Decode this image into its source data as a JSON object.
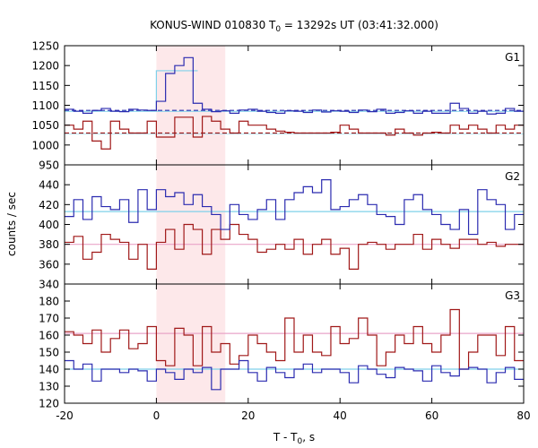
{
  "chart_data": {
    "type": "line",
    "title_main": "KONUS-WIND 010830 T",
    "title_sub": "0",
    "title_rest": " = 13292s UT (03:41:32.000)",
    "xlabel_main": "T - T",
    "xlabel_sub": "0",
    "xlabel_rest": ", s",
    "ylabel": "counts / sec",
    "xlim": [
      -20,
      80
    ],
    "x_ticks": [
      -20,
      0,
      20,
      40,
      60,
      80
    ],
    "shaded_interval": [
      0,
      15
    ],
    "colors": {
      "blue": "#2b2bb0",
      "red": "#a01818",
      "cyan": "#7fd0ea",
      "pink": "#e9a4c8",
      "shade": "#fde8ea"
    },
    "step_start": -20,
    "step_width": 2,
    "panels": [
      {
        "label": "G1",
        "ylim": [
          950,
          1250
        ],
        "y_ticks": [
          950,
          1000,
          1050,
          1100,
          1150,
          1200,
          1250
        ],
        "blue_level": 1087,
        "red_level": 1030,
        "blue_fit_style": "dashed",
        "red_fit_style": "dashed",
        "blue": [
          1090,
          1085,
          1080,
          1087,
          1092,
          1085,
          1084,
          1090,
          1088,
          1087,
          1110,
          1180,
          1200,
          1220,
          1105,
          1090,
          1084,
          1086,
          1080,
          1088,
          1090,
          1085,
          1082,
          1080,
          1086,
          1085,
          1082,
          1088,
          1083,
          1086,
          1085,
          1082,
          1088,
          1084,
          1090,
          1080,
          1082,
          1086,
          1080,
          1085,
          1080,
          1080,
          1105,
          1092,
          1080,
          1085,
          1078,
          1080,
          1092,
          1085
        ],
        "red": [
          1050,
          1040,
          1060,
          1010,
          990,
          1060,
          1040,
          1030,
          1030,
          1060,
          1020,
          1020,
          1070,
          1070,
          1020,
          1072,
          1060,
          1040,
          1030,
          1060,
          1050,
          1050,
          1040,
          1035,
          1032,
          1030,
          1030,
          1030,
          1030,
          1032,
          1050,
          1040,
          1030,
          1030,
          1030,
          1025,
          1040,
          1030,
          1025,
          1030,
          1032,
          1030,
          1050,
          1040,
          1050,
          1040,
          1030,
          1050,
          1040,
          1050
        ],
        "cyan_box": [
          0,
          9,
          1187
        ]
      },
      {
        "label": "G2",
        "ylim": [
          340,
          460
        ],
        "y_ticks": [
          340,
          360,
          380,
          400,
          420,
          440
        ],
        "blue_level": 413,
        "red_level": 380,
        "blue_fit_style": "solid",
        "red_fit_style": "solid",
        "blue": [
          408,
          425,
          405,
          428,
          418,
          415,
          425,
          402,
          435,
          415,
          435,
          428,
          432,
          420,
          430,
          418,
          410,
          395,
          420,
          410,
          405,
          415,
          425,
          405,
          425,
          432,
          438,
          432,
          445,
          415,
          418,
          425,
          430,
          420,
          410,
          408,
          400,
          425,
          430,
          415,
          410,
          400,
          395,
          415,
          390,
          435,
          425,
          420,
          395,
          410
        ],
        "red": [
          382,
          388,
          365,
          372,
          390,
          385,
          382,
          365,
          380,
          355,
          382,
          395,
          375,
          400,
          395,
          370,
          395,
          385,
          400,
          390,
          385,
          372,
          375,
          380,
          375,
          385,
          370,
          380,
          385,
          370,
          376,
          355,
          380,
          382,
          380,
          375,
          380,
          380,
          390,
          375,
          385,
          380,
          376,
          385,
          385,
          380,
          382,
          378,
          380,
          380
        ]
      },
      {
        "label": "G3",
        "ylim": [
          120,
          190
        ],
        "y_ticks": [
          120,
          130,
          140,
          150,
          160,
          170,
          180
        ],
        "blue_level": 140,
        "red_level": 161,
        "blue_fit_style": "solid",
        "red_fit_style": "solid",
        "blue": [
          145,
          140,
          143,
          133,
          140,
          140,
          138,
          140,
          139,
          133,
          140,
          138,
          134,
          140,
          138,
          141,
          128,
          140,
          140,
          145,
          138,
          133,
          141,
          138,
          135,
          140,
          143,
          138,
          140,
          140,
          138,
          132,
          142,
          140,
          137,
          135,
          141,
          140,
          139,
          133,
          142,
          138,
          136,
          140,
          141,
          140,
          132,
          138,
          141,
          134
        ],
        "red": [
          162,
          160,
          155,
          163,
          150,
          158,
          163,
          152,
          155,
          165,
          145,
          142,
          164,
          160,
          142,
          165,
          150,
          155,
          143,
          148,
          160,
          155,
          150,
          145,
          170,
          150,
          160,
          150,
          148,
          165,
          155,
          158,
          170,
          160,
          142,
          150,
          160,
          155,
          165,
          155,
          150,
          160,
          175,
          140,
          150,
          160,
          160,
          148,
          165,
          145
        ]
      }
    ]
  }
}
